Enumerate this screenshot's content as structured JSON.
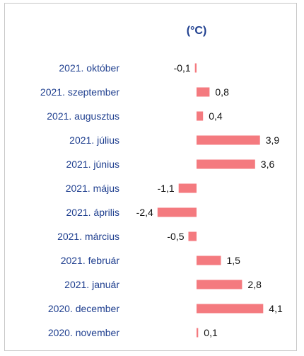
{
  "chart_data": {
    "type": "bar",
    "orientation": "horizontal",
    "title": "(°C)",
    "categories": [
      "2021. október",
      "2021. szeptember",
      "2021. augusztus",
      "2021. július",
      "2021. június",
      "2021. május",
      "2021. április",
      "2021. március",
      "2021. február",
      "2021. január",
      "2020. december",
      "2020. november"
    ],
    "values": [
      -0.1,
      0.8,
      0.4,
      3.9,
      3.6,
      -1.1,
      -2.4,
      -0.5,
      1.5,
      2.8,
      4.1,
      0.1
    ],
    "value_labels": [
      "-0,1",
      "0,8",
      "0,4",
      "3,9",
      "3,6",
      "-1,1",
      "-2,4",
      "-0,5",
      "1,5",
      "2,8",
      "4,1",
      "0,1"
    ],
    "grid": false,
    "legend": "none",
    "colors": {
      "bar": "#f47a7f",
      "category_label": "#1f3f8f",
      "title": "#1f3f8f",
      "value_label": "#111111"
    }
  }
}
